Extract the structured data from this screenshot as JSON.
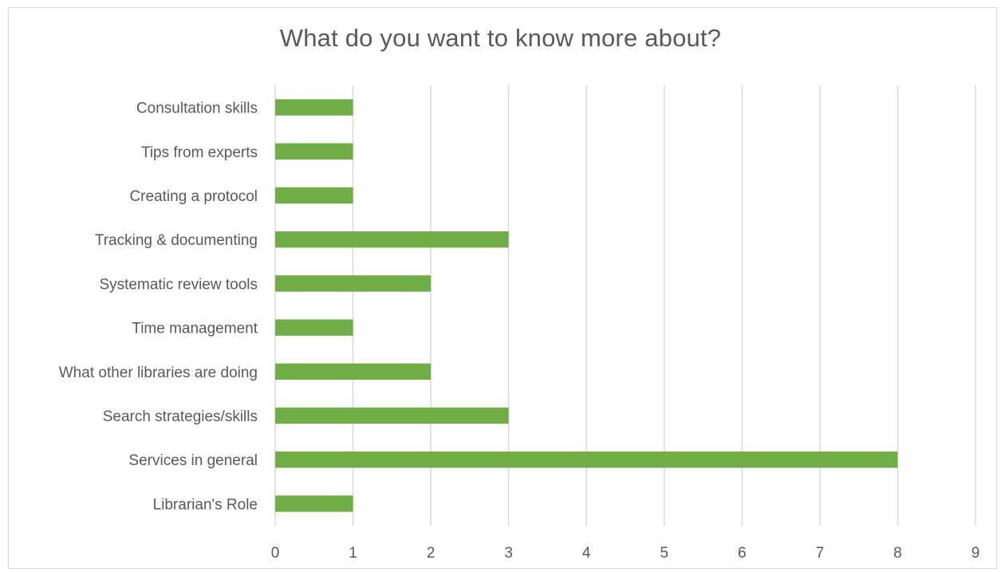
{
  "chart_data": {
    "type": "bar",
    "orientation": "horizontal",
    "title": "What do you want to know more about?",
    "xlabel": "",
    "ylabel": "",
    "categories": [
      "Consultation skills",
      "Tips from experts",
      "Creating a protocol",
      "Tracking & documenting",
      "Systematic review tools",
      "Time management",
      "What other libraries are doing",
      "Search strategies/skills",
      "Services in general",
      "Librarian's Role"
    ],
    "values": [
      1,
      1,
      1,
      3,
      2,
      1,
      2,
      3,
      8,
      1
    ],
    "xlim": [
      0,
      9
    ],
    "xticks": [
      "0",
      "1",
      "2",
      "3",
      "4",
      "5",
      "6",
      "7",
      "8",
      "9"
    ],
    "grid": "vertical",
    "legend": "none",
    "bar_color": "#70ad47",
    "grid_color": "#d9d9d9",
    "text_color": "#595959"
  }
}
